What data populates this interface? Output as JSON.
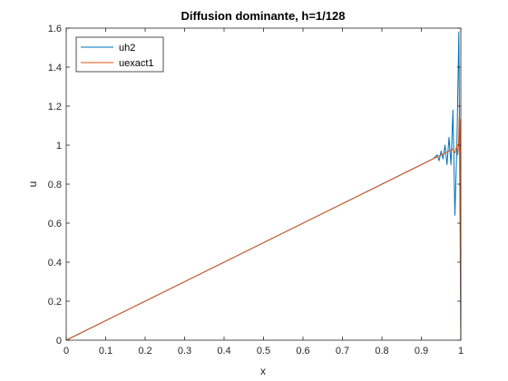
{
  "chart_data": {
    "type": "line",
    "title": "Diffusion dominante, h=1/128",
    "xlabel": "x",
    "ylabel": "u",
    "xlim": [
      0,
      1
    ],
    "ylim": [
      0,
      1.6
    ],
    "xticks": [
      0,
      0.1,
      0.2,
      0.3,
      0.4,
      0.5,
      0.6,
      0.7,
      0.8,
      0.9,
      1
    ],
    "xtick_labels": [
      "0",
      "0.1",
      "0.2",
      "0.3",
      "0.4",
      "0.5",
      "0.6",
      "0.7",
      "0.8",
      "0.9",
      "1"
    ],
    "yticks": [
      0,
      0.2,
      0.4,
      0.6,
      0.8,
      1,
      1.2,
      1.4,
      1.6
    ],
    "ytick_labels": [
      "0",
      "0.2",
      "0.4",
      "0.6",
      "0.8",
      "1",
      "1.2",
      "1.4",
      "1.6"
    ],
    "grid": false,
    "legend_position": "top-left",
    "series": [
      {
        "name": "uh2",
        "color": "#0072BD",
        "x": [
          0,
          0.9,
          0.92,
          0.93,
          0.94,
          0.945,
          0.95,
          0.955,
          0.96,
          0.965,
          0.97,
          0.975,
          0.98,
          0.985,
          0.99,
          0.995,
          1.0
        ],
        "y": [
          0,
          0.9,
          0.92,
          0.93,
          0.95,
          0.92,
          0.97,
          0.93,
          1.0,
          0.9,
          1.04,
          0.9,
          1.18,
          0.64,
          1.0,
          1.58,
          0
        ]
      },
      {
        "name": "uexact1",
        "color": "#D95319",
        "x": [
          0,
          0.9,
          0.95,
          0.97,
          0.98,
          0.985,
          0.99,
          0.992,
          0.994,
          0.996,
          0.998,
          1.0
        ],
        "y": [
          0,
          0.9,
          0.95,
          0.97,
          0.98,
          0.96,
          1.0,
          0.95,
          0.99,
          1.15,
          1.12,
          0
        ]
      }
    ]
  }
}
